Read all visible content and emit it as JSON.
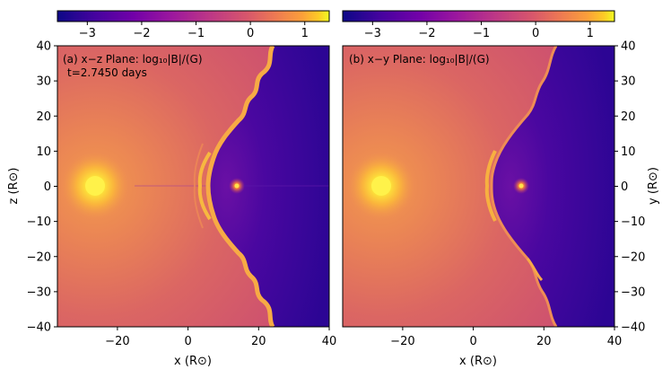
{
  "colorbar": {
    "colormap": "plasma",
    "ticks": [
      "−3",
      "−2",
      "−1",
      "0",
      "1"
    ],
    "tick_values": [
      -3,
      -2,
      -1,
      0,
      1
    ],
    "range": [
      -3.55,
      1.45
    ]
  },
  "panels": [
    {
      "label": "(a) x−z Plane: log₁₀|B|/(G)",
      "time": "t=2.7450 days",
      "xlabel": "x (R⊙)",
      "ylabel": "z (R⊙)",
      "ylabel_side": "left"
    },
    {
      "label": "(b) x−y Plane: log₁₀|B|/(G)",
      "time": "",
      "xlabel": "x (R⊙)",
      "ylabel": "y (R⊙)",
      "ylabel_side": "right"
    }
  ],
  "axes": {
    "xticks": [
      "−20",
      "0",
      "20",
      "40"
    ],
    "xtick_values": [
      -20,
      0,
      20,
      40
    ],
    "yticks": [
      "40",
      "30",
      "20",
      "10",
      "0",
      "−10",
      "−20",
      "−30",
      "−40"
    ],
    "ytick_values": [
      40,
      30,
      20,
      10,
      0,
      -10,
      -20,
      -30,
      -40
    ],
    "xlim": [
      -37,
      40
    ],
    "ylim": [
      -40,
      40
    ]
  },
  "colors": {
    "background": "#d2586b",
    "shock": "#f9b73f",
    "inner": "#3d0599",
    "star": "#fff04a"
  }
}
